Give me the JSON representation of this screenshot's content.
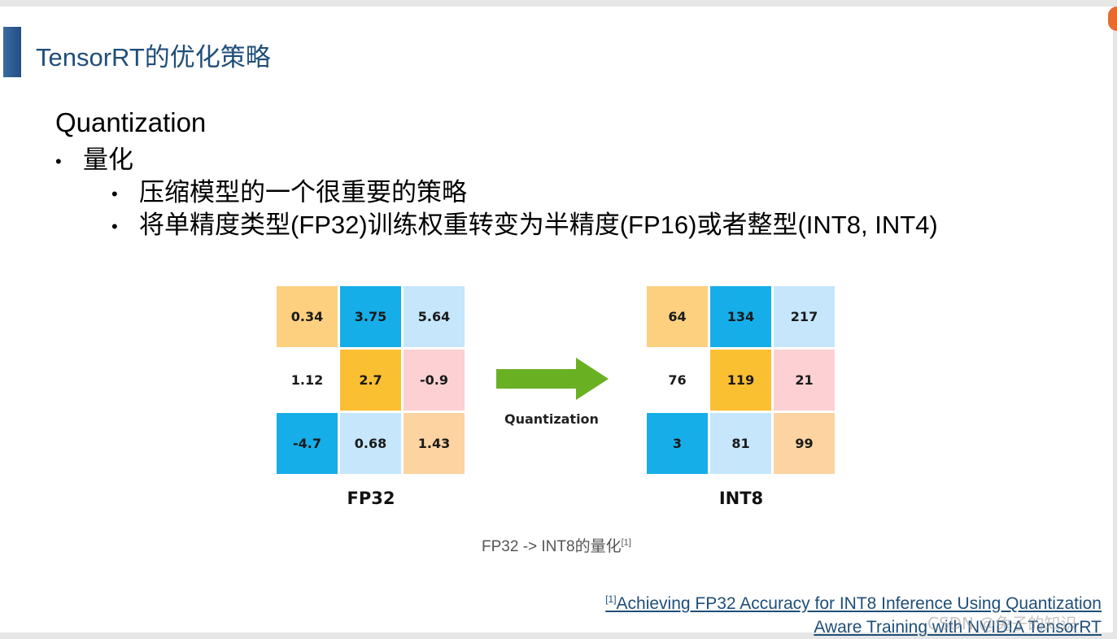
{
  "slide": {
    "title": "TensorRT的优化策略",
    "heading": "Quantization",
    "bullets": [
      {
        "text": "量化"
      },
      {
        "text": "压缩模型的一个很重要的策略"
      },
      {
        "text": "将单精度类型(FP32)训练权重转变为半精度(FP16)或者整型(INT8, INT4)"
      }
    ],
    "bullet_glyph": "•"
  },
  "figure": {
    "fp32": {
      "label": "FP32",
      "cells": [
        {
          "value": "0.34",
          "color": "#fcd07f"
        },
        {
          "value": "3.75",
          "color": "#16aee8"
        },
        {
          "value": "5.64",
          "color": "#c5e6fb"
        },
        {
          "value": "1.12",
          "color": "#ffffff"
        },
        {
          "value": "2.7",
          "color": "#fbbf32"
        },
        {
          "value": "-0.9",
          "color": "#fdd1d3"
        },
        {
          "value": "-4.7",
          "color": "#16aee8"
        },
        {
          "value": "0.68",
          "color": "#c5e6fb"
        },
        {
          "value": "1.43",
          "color": "#fdd3a2"
        }
      ]
    },
    "int8": {
      "label": "INT8",
      "cells": [
        {
          "value": "64",
          "color": "#fcd07f"
        },
        {
          "value": "134",
          "color": "#16aee8"
        },
        {
          "value": "217",
          "color": "#c5e6fb"
        },
        {
          "value": "76",
          "color": "#ffffff"
        },
        {
          "value": "119",
          "color": "#fbbf32"
        },
        {
          "value": "21",
          "color": "#fdd1d3"
        },
        {
          "value": "3",
          "color": "#16aee8"
        },
        {
          "value": "81",
          "color": "#c5e6fb"
        },
        {
          "value": "99",
          "color": "#fdd3a2"
        }
      ]
    },
    "arrow_label": "Quantization",
    "arrow_color": "#6ab023",
    "caption": "FP32 -> INT8的量化",
    "caption_ref": "[1]"
  },
  "reference": {
    "marker": "[1]",
    "line1": "Achieving FP32 Accuracy for INT8 Inference Using Quantization",
    "line2": "Aware Training with NVIDIA TensorRT"
  },
  "watermark": "CSDN @兔子的知识"
}
